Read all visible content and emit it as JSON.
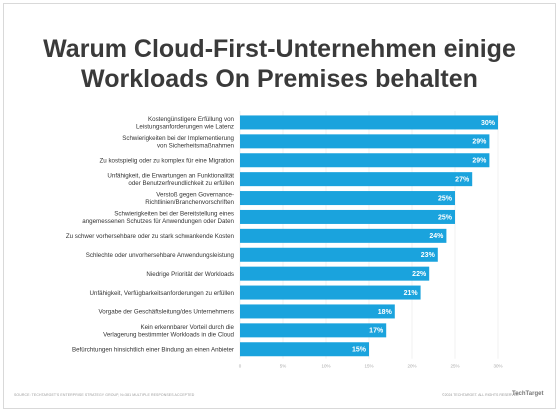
{
  "title_line1": "Warum Cloud-First-Unternehmen einige",
  "title_line2": "Workloads On Premises behalten",
  "footer_left": "SOURCE: TECHTARGET'S ENTERPRISE STRATEGY GROUP, N=381 MULTIPLE RESPONSES ACCEPTED",
  "footer_right": "©2024 TECHTARGET. ALL RIGHTS RESERVED",
  "logo_text": "TechTarget",
  "bar_color": "#1aa3dd",
  "chart_data": {
    "type": "bar",
    "orientation": "horizontal",
    "categories": [
      [
        "Kostengünstigere Erfüllung von",
        "Leistungsanforderungen wie Latenz"
      ],
      [
        "Schwierigkeiten bei der Implementierung",
        "von Sicherheitsmaßnahmen"
      ],
      [
        "Zu kostspielig oder zu komplex für eine Migration"
      ],
      [
        "Unfähigkeit, die Erwartungen an Funktionalität",
        "oder Benutzerfreundlichkeit zu erfüllen"
      ],
      [
        "Verstoß gegen Governance-",
        "Richtlinien/Branchenvorschriften"
      ],
      [
        "Schwierigkeiten bei der Bereitstellung eines",
        "angemessenen Schutzes für Anwendungen oder Daten"
      ],
      [
        "Zu schwer vorhersehbare oder zu stark schwankende Kosten"
      ],
      [
        "Schlechte oder unvorhersehbare Anwendungsleistung"
      ],
      [
        "Niedrige Priorität der Workloads"
      ],
      [
        "Unfähigkeit, Verfügbarkeitsanforderungen zu erfüllen"
      ],
      [
        "Vorgabe der Geschäftsleitung/des Unternehmens"
      ],
      [
        "Kein erkennbarer Vorteil durch die",
        "Verlagerung bestimmter Workloads in die Cloud"
      ],
      [
        "Befürchtungen hinsichtlich einer Bindung an einen Anbieter"
      ]
    ],
    "values": [
      30,
      29,
      29,
      27,
      25,
      25,
      24,
      23,
      22,
      21,
      18,
      17,
      15
    ],
    "value_labels": [
      "30%",
      "29%",
      "29%",
      "27%",
      "25%",
      "25%",
      "24%",
      "23%",
      "22%",
      "21%",
      "18%",
      "17%",
      "15%"
    ],
    "xticks": [
      0,
      5,
      10,
      15,
      20,
      25,
      30
    ],
    "xtick_labels": [
      "0",
      "5%",
      "10%",
      "15%",
      "20%",
      "25%",
      "30%"
    ],
    "xlim": [
      0,
      30
    ],
    "grid": true
  }
}
